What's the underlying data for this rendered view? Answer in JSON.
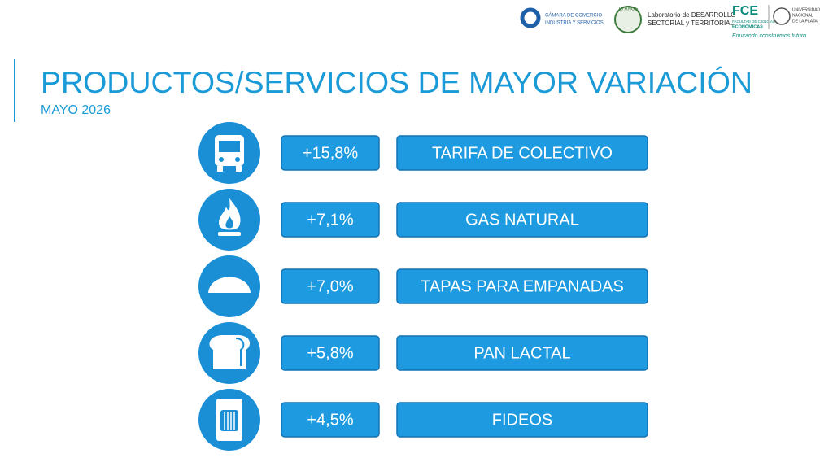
{
  "logos": {
    "camara": [
      "CÁMARA DE COMERCIO",
      "INDUSTRIA Y SERVICIOS"
    ],
    "aniversario": "10 AÑOS",
    "laboratorio": [
      "Laboratorio de DESARROLLO",
      "SECTORIAL y TERRITORIAL"
    ],
    "fce": {
      "sigla": "FCE",
      "nombre": [
        "FACULTAD DE CIENCIAS",
        "ECONÓMICAS"
      ]
    },
    "unlp": [
      "UNIVERSIDAD",
      "NACIONAL",
      "DE LA PLATA"
    ],
    "lema": "Educando construimos futuro"
  },
  "title": "PRODUCTOS/SERVICIOS DE MAYOR VARIACIÓN",
  "subtitle": "MAYO 2026",
  "items": [
    {
      "variation": "+15,8%",
      "label": "TARIFA DE COLECTIVO"
    },
    {
      "variation": "+7,1%",
      "label": "GAS NATURAL"
    },
    {
      "variation": "+7,0%",
      "label": "TAPAS PARA EMPANADAS"
    },
    {
      "variation": "+5,8%",
      "label": "PAN LACTAL"
    },
    {
      "variation": "+4,5%",
      "label": "FIDEOS"
    }
  ]
}
